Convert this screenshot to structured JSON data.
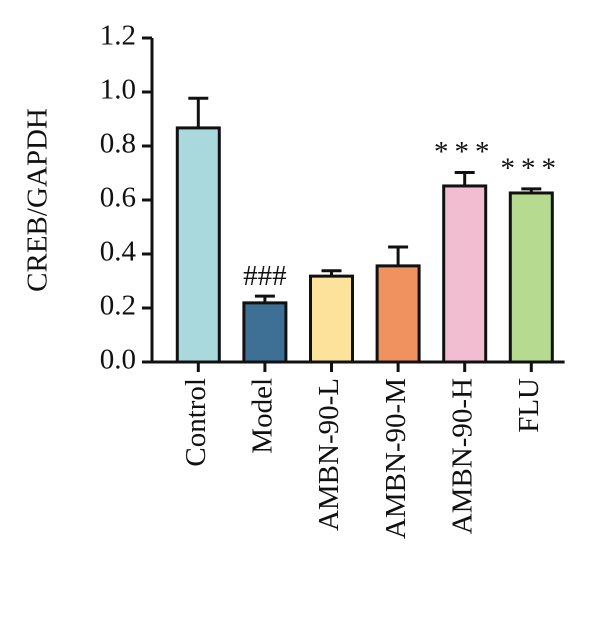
{
  "chart_data": {
    "type": "bar",
    "y_label": "CREB/GAPDH",
    "categories": [
      "Control",
      "Model",
      "AMBN-90-L",
      "AMBN-90-M",
      "AMBN-90-H",
      "FLU"
    ],
    "values": [
      0.867,
      0.219,
      0.318,
      0.356,
      0.652,
      0.626
    ],
    "errors": [
      0.11,
      0.025,
      0.02,
      0.07,
      0.05,
      0.015
    ],
    "colors": [
      "#a9d9dd",
      "#3e6f95",
      "#fde29b",
      "#f0925f",
      "#f1bdd1",
      "#b6da8f"
    ],
    "annotations": [
      {
        "category": "Model",
        "text": "###"
      },
      {
        "category": "AMBN-90-H",
        "text": "***"
      },
      {
        "category": "FLU",
        "text": "***"
      }
    ],
    "ylim": [
      0,
      1.2
    ],
    "yticks": [
      {
        "value": 0,
        "label": "0.0"
      },
      0.2,
      0.4,
      0.6,
      0.8,
      {
        "value": 1,
        "label": "1.0"
      },
      1.2
    ]
  }
}
